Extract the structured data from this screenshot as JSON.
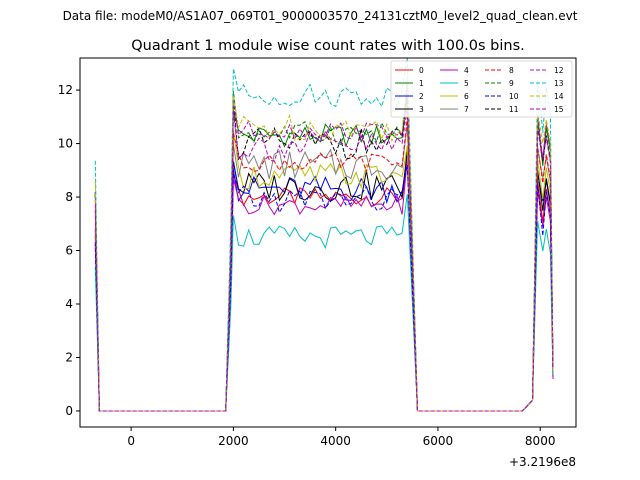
{
  "suptitle": "Data file: modeM0/AS1A07_069T01_9000003570_24131cztM0_level2_quad_clean.evt",
  "chart_data": {
    "type": "line",
    "title": "Quadrant 1 module wise count rates with 100.0s bins.",
    "xlabel": "",
    "ylabel": "",
    "x_offset_label": "+3.2196e8",
    "xlim": [
      -1000,
      8700
    ],
    "ylim": [
      -0.6,
      13.2
    ],
    "x_ticks": [
      0,
      2000,
      4000,
      6000,
      8000
    ],
    "y_ticks": [
      0,
      2,
      4,
      6,
      8,
      10,
      12
    ],
    "grid": false,
    "legend_position": "top-right",
    "segments": [
      {
        "t_start": -700,
        "t_end": -620,
        "kind": "decay"
      },
      {
        "t_start": -620,
        "t_end": 1850,
        "kind": "zero"
      },
      {
        "t_start": 1850,
        "t_end": 2000,
        "kind": "rise"
      },
      {
        "t_start": 2000,
        "t_end": 5400,
        "kind": "plateau"
      },
      {
        "t_start": 5400,
        "t_end": 5600,
        "kind": "fall"
      },
      {
        "t_start": 5600,
        "t_end": 7650,
        "kind": "zero"
      },
      {
        "t_start": 7650,
        "t_end": 7950,
        "kind": "rise"
      },
      {
        "t_start": 7950,
        "t_end": 8200,
        "kind": "plateau"
      },
      {
        "t_start": 8200,
        "t_end": 8250,
        "kind": "fall"
      }
    ],
    "series": [
      {
        "name": "0",
        "color": "#ff0000",
        "dash": false,
        "level": 8.0
      },
      {
        "name": "1",
        "color": "#008000",
        "dash": false,
        "level": 10.3
      },
      {
        "name": "2",
        "color": "#0000ff",
        "dash": false,
        "level": 8.3
      },
      {
        "name": "3",
        "color": "#000000",
        "dash": false,
        "level": 8.4
      },
      {
        "name": "4",
        "color": "#bf00bf",
        "dash": false,
        "level": 7.7
      },
      {
        "name": "5",
        "color": "#00bfbf",
        "dash": false,
        "level": 6.5
      },
      {
        "name": "6",
        "color": "#bfbf00",
        "dash": false,
        "level": 8.8
      },
      {
        "name": "7",
        "color": "#808080",
        "dash": false,
        "level": 9.2
      },
      {
        "name": "8",
        "color": "#ff0000",
        "dash": true,
        "level": 9.3
      },
      {
        "name": "9",
        "color": "#008000",
        "dash": true,
        "level": 10.4
      },
      {
        "name": "10",
        "color": "#0000ff",
        "dash": true,
        "level": 7.9
      },
      {
        "name": "11",
        "color": "#000000",
        "dash": true,
        "level": 10.0
      },
      {
        "name": "12",
        "color": "#bf00bf",
        "dash": true,
        "level": 10.5
      },
      {
        "name": "13",
        "color": "#00bfbf",
        "dash": true,
        "level": 11.8
      },
      {
        "name": "14",
        "color": "#bfbf00",
        "dash": true,
        "level": 10.6
      },
      {
        "name": "15",
        "color": "#bf00bf",
        "dash": true,
        "level": 9.9
      }
    ]
  }
}
